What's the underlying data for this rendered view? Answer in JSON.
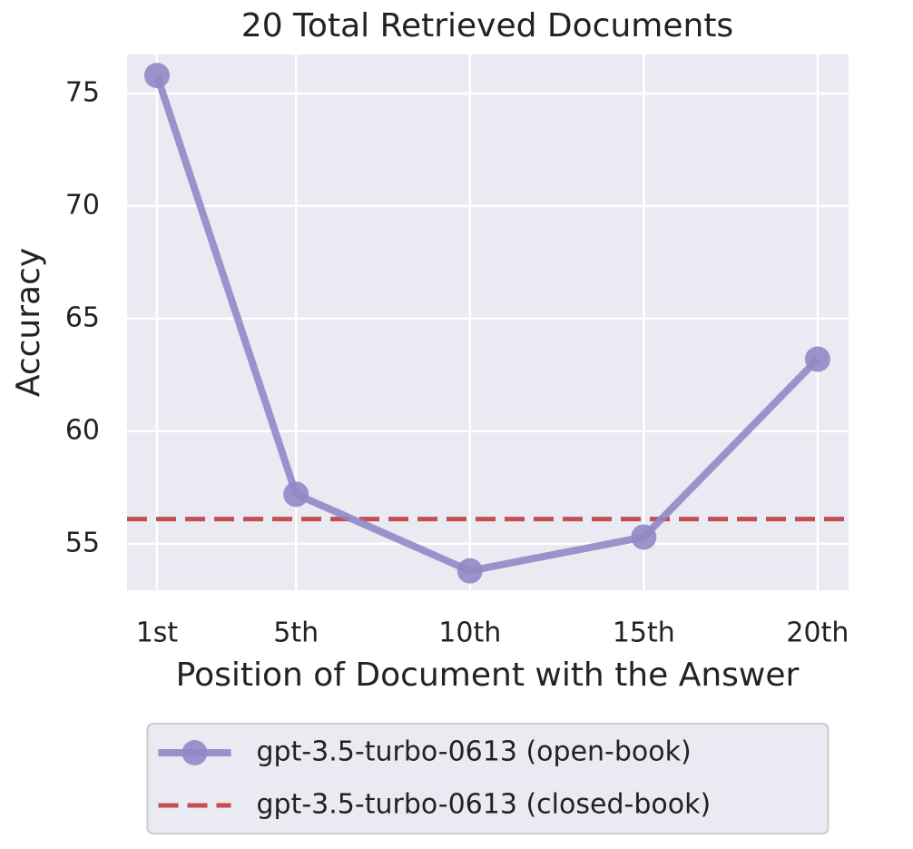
{
  "chart_data": {
    "type": "line",
    "title": "20 Total Retrieved Documents",
    "x_label": "Position of Document with the Answer",
    "y_label": "Accuracy",
    "x": [
      1,
      5,
      10,
      15,
      20
    ],
    "series": [
      {
        "name": "gpt-3.5-turbo-0613 (open-book)",
        "color": "#9189c6",
        "values": [
          75.8,
          57.2,
          53.8,
          55.3,
          63.2
        ]
      }
    ],
    "reference_lines": [
      {
        "name": "gpt-3.5-turbo-0613 (closed-book)",
        "color": "#c44e52",
        "value": 56.1
      }
    ],
    "xlim": [
      0.14,
      20.89
    ],
    "ylim": [
      52.94,
      76.73
    ],
    "xticks": [
      {
        "value": 1,
        "label": "1st"
      },
      {
        "value": 5,
        "label": "5th"
      },
      {
        "value": 10,
        "label": "10th"
      },
      {
        "value": 15,
        "label": "15th"
      },
      {
        "value": 20,
        "label": "20th"
      }
    ],
    "yticks": [
      55,
      60,
      65,
      70,
      75
    ],
    "grid": true,
    "legend": "lower center"
  }
}
